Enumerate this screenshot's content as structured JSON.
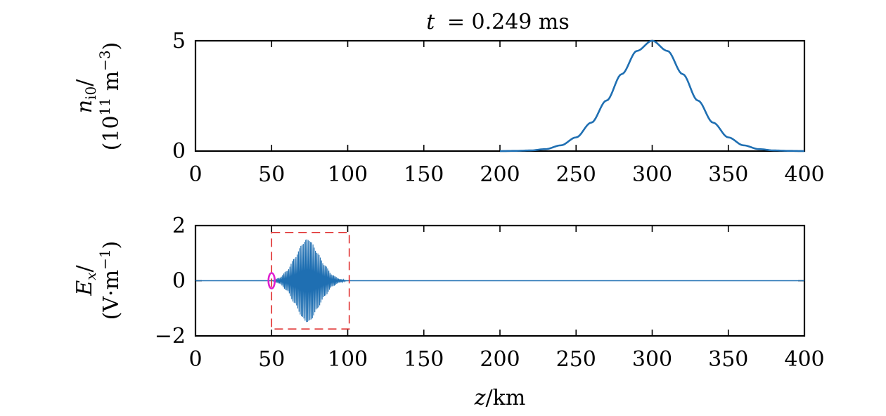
{
  "chart_data": [
    {
      "type": "line",
      "title": "t = 0.249 ms",
      "title_prefix": "t",
      "title_value": "= 0.249 ms",
      "ylabel_line1": "n",
      "ylabel_sub": "i0",
      "ylabel_line1_tail": "/",
      "ylabel_line2": "(10",
      "ylabel_line2_sup": "11",
      "ylabel_line2_tail": " m",
      "ylabel_line2_sup2": "−3",
      "ylabel_line2_end": ")",
      "xlim": [
        0,
        400
      ],
      "ylim": [
        0,
        5
      ],
      "xticks": [
        0,
        50,
        100,
        150,
        200,
        250,
        300,
        350,
        400
      ],
      "xtick_labels": [
        "0",
        "50",
        "100",
        "150",
        "200",
        "250",
        "300",
        "350",
        "400"
      ],
      "yticks": [
        0,
        5
      ],
      "ytick_labels": [
        "0",
        "5"
      ],
      "series": [
        {
          "x": [
            200,
            210,
            220,
            230,
            240,
            250,
            260,
            270,
            280,
            290,
            300,
            310,
            320,
            330,
            340,
            350,
            360,
            370,
            380,
            390,
            400
          ],
          "values": [
            0.0,
            0.01,
            0.03,
            0.09,
            0.26,
            0.62,
            1.29,
            2.29,
            3.49,
            4.54,
            5.0,
            4.54,
            3.49,
            2.29,
            1.29,
            0.62,
            0.26,
            0.09,
            0.03,
            0.01,
            0.0
          ]
        }
      ],
      "grid": false,
      "color": "#1f6fb2"
    },
    {
      "type": "line",
      "ylabel_line1": "E",
      "ylabel_sub": "x",
      "ylabel_line1_tail": "/",
      "ylabel_line2": "(V·m",
      "ylabel_line2_sup": "−1",
      "ylabel_line2_end": ")",
      "xlabel": "z/km",
      "xlabel_italic": "z",
      "xlabel_tail": "/km",
      "xlim": [
        0,
        400
      ],
      "ylim": [
        -2,
        2
      ],
      "xticks": [
        0,
        50,
        100,
        150,
        200,
        250,
        300,
        350,
        400
      ],
      "xtick_labels": [
        "0",
        "50",
        "100",
        "150",
        "200",
        "250",
        "300",
        "350",
        "400"
      ],
      "yticks": [
        -2,
        0,
        2
      ],
      "ytick_labels": [
        "−2",
        "0",
        "2"
      ],
      "series": [
        {
          "x": [
            0,
            50,
            55,
            60,
            65,
            70,
            73,
            76,
            80,
            85,
            90,
            95,
            100,
            400
          ],
          "values": [
            0,
            0,
            0.1,
            0.35,
            0.8,
            1.3,
            1.5,
            1.4,
            1.0,
            0.55,
            0.2,
            0.06,
            0,
            0
          ],
          "envelope": true,
          "carrier_period_km": 0.8
        }
      ],
      "annotations": {
        "dashed_box": {
          "x": [
            50,
            101
          ],
          "y": [
            -1.75,
            1.75
          ],
          "color": "#e03030"
        },
        "marker_ellipse": {
          "x": 50,
          "y": 0,
          "color": "#e020d0"
        }
      },
      "grid": false,
      "color": "#1f6fb2"
    }
  ]
}
